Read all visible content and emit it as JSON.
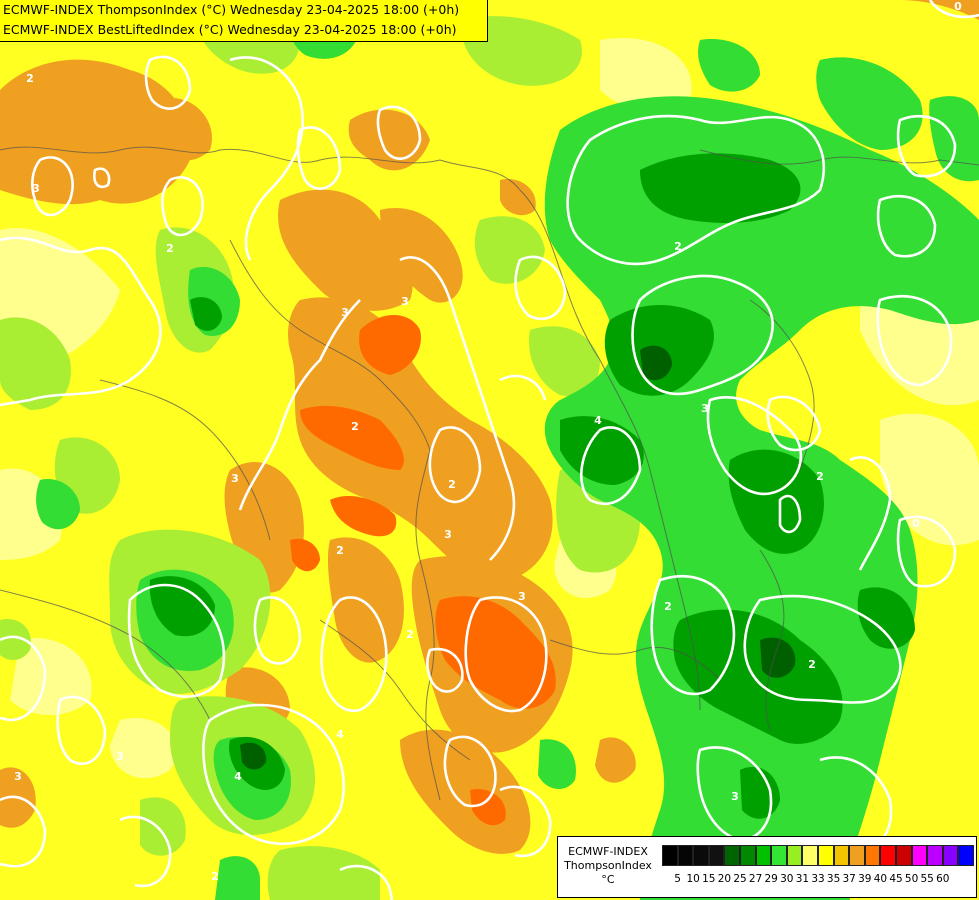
{
  "title": {
    "line1": "ECMWF-INDEX ThompsonIndex (°C) Wednesday 23-04-2025 18:00 (+0h)",
    "line2": "ECMWF-INDEX BestLiftedIndex (°C) Wednesday 23-04-2025 18:00 (+0h)"
  },
  "legend": {
    "line1": "ECMWF-INDEX",
    "line2": "ThompsonIndex",
    "unit": "°C",
    "ticks": [
      "5",
      "10",
      "15",
      "20",
      "25",
      "27",
      "29",
      "30",
      "31",
      "33",
      "35",
      "37",
      "39",
      "40",
      "45",
      "50",
      "55",
      "60"
    ],
    "colors": [
      "#000000",
      "#050505",
      "#0a0a0a",
      "#111111",
      "#006400",
      "#008800",
      "#00c000",
      "#33e633",
      "#99ee22",
      "#ffff66",
      "#ffff00",
      "#f5c400",
      "#f0a020",
      "#ff7700",
      "#ff0000",
      "#cc0000",
      "#ff00ff",
      "#bb00ff",
      "#8800ff",
      "#0000ff"
    ]
  },
  "field_colors": {
    "light_yellow": "#ffff99",
    "yellow": "#ffff00",
    "gold": "#f5d000",
    "orange": "#f0a020",
    "dark_orange": "#ff6a00",
    "light_green": "#aaee33",
    "green": "#33dd33",
    "dark_green": "#00a000",
    "deep_green": "#006000",
    "contour": "#ffffff",
    "border": "#555555"
  },
  "contour_labels": [
    "2",
    "3",
    "2",
    "3",
    "3",
    "2",
    "3",
    "2",
    "3",
    "2",
    "2",
    "3",
    "2",
    "4",
    "0",
    "3",
    "2",
    "3",
    "2",
    "4",
    "4",
    "2",
    "3",
    "2",
    "3",
    "0"
  ]
}
